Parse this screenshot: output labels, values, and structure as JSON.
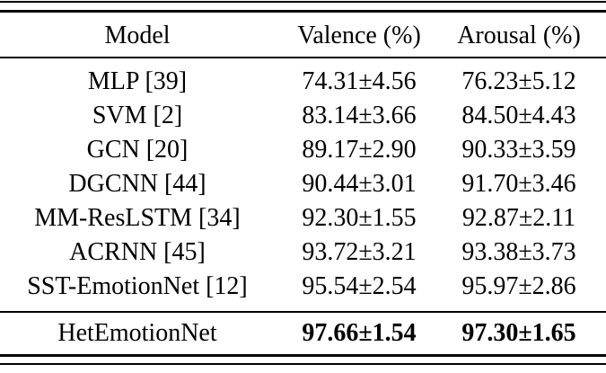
{
  "page": {
    "background": "#ffffff",
    "text_color": "#000000",
    "rule_color": "#000000"
  },
  "table": {
    "columns": [
      "Model",
      "Valence (%)",
      "Arousal (%)"
    ],
    "rows": [
      {
        "model": "MLP [39]",
        "valence": "74.31±4.56",
        "arousal": "76.23±5.12"
      },
      {
        "model": "SVM [2]",
        "valence": "83.14±3.66",
        "arousal": "84.50±4.43"
      },
      {
        "model": "GCN [20]",
        "valence": "89.17±2.90",
        "arousal": "90.33±3.59"
      },
      {
        "model": "DGCNN [44]",
        "valence": "90.44±3.01",
        "arousal": "91.70±3.46"
      },
      {
        "model": "MM-ResLSTM [34]",
        "valence": "92.30±1.55",
        "arousal": "92.87±2.11"
      },
      {
        "model": "ACRNN [45]",
        "valence": "93.72±3.21",
        "arousal": "93.38±3.73"
      },
      {
        "model": "SST-EmotionNet [12]",
        "valence": "95.54±2.54",
        "arousal": "95.97±2.86"
      }
    ],
    "highlight_row": {
      "model": "HetEmotionNet",
      "valence": "97.66±1.54",
      "arousal": "97.30±1.65"
    }
  }
}
